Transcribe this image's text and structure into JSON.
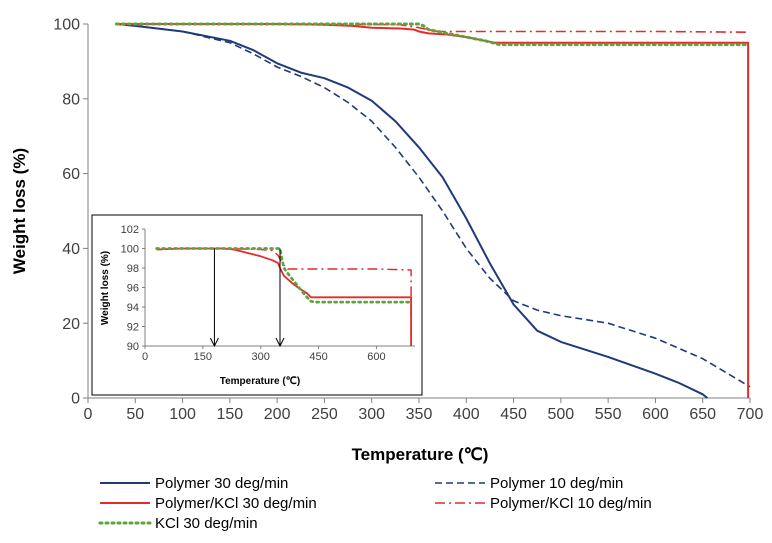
{
  "chart_data": [
    {
      "type": "line",
      "title": "",
      "xlabel": "Temperature (℃)",
      "ylabel": "Weight  loss (%)",
      "xlim": [
        0,
        700
      ],
      "ylim": [
        0,
        100
      ],
      "xticks": [
        "0",
        "50",
        "100",
        "150",
        "200",
        "250",
        "300",
        "350",
        "400",
        "450",
        "500",
        "550",
        "600",
        "650",
        "700"
      ],
      "yticks": [
        "0",
        "20",
        "40",
        "60",
        "80",
        "100"
      ],
      "grid": false,
      "legend": "bottom",
      "series": [
        {
          "name": "Polymer 30 deg/min",
          "color": "#1f3a7a",
          "style": "solid",
          "x": [
            30,
            50,
            100,
            150,
            175,
            200,
            225,
            250,
            275,
            300,
            325,
            350,
            375,
            400,
            425,
            450,
            475,
            500,
            525,
            550,
            600,
            625,
            650,
            655
          ],
          "y": [
            100,
            99.5,
            98,
            95.5,
            93,
            89.5,
            87,
            85.5,
            83,
            79.5,
            74,
            67,
            59,
            48,
            36,
            25,
            18,
            15,
            13,
            11,
            6.5,
            4,
            1,
            0
          ]
        },
        {
          "name": "Polymer 10 deg/min",
          "color": "#1f3a7a",
          "style": "dashed",
          "x": [
            30,
            50,
            100,
            150,
            175,
            200,
            225,
            250,
            275,
            300,
            325,
            350,
            375,
            400,
            425,
            450,
            475,
            500,
            550,
            600,
            650,
            680,
            700
          ],
          "y": [
            100,
            99.5,
            98,
            95,
            92,
            88.5,
            86,
            83,
            79,
            74,
            67,
            59,
            50,
            40,
            32,
            26,
            23.5,
            22,
            20,
            16,
            10.5,
            6,
            3
          ]
        },
        {
          "name": "Polymer/KCl 30 deg/min",
          "color": "#e32b2b",
          "style": "solid",
          "x": [
            30,
            50,
            100,
            150,
            200,
            250,
            280,
            300,
            330,
            345,
            350,
            360,
            380,
            400,
            420,
            430,
            440,
            500,
            600,
            698,
            698,
            698
          ],
          "y": [
            100,
            100,
            100,
            100,
            100,
            99.8,
            99.5,
            99,
            98.8,
            98.5,
            98,
            97.5,
            97.2,
            96.5,
            95.5,
            95,
            95,
            95,
            95,
            95,
            50,
            0
          ]
        },
        {
          "name": "Polymer/KCl 10 deg/min",
          "color": "#e32b2b",
          "style": "dashdot",
          "x": [
            30,
            50,
            100,
            200,
            300,
            330,
            350,
            360,
            370,
            400,
            500,
            600,
            698,
            698
          ],
          "y": [
            100,
            100,
            100,
            100,
            99.9,
            99.8,
            99,
            98.5,
            98,
            98,
            98,
            98,
            97.8,
            97.8
          ]
        },
        {
          "name": "KCl 30 deg/min",
          "color": "#5fa33b",
          "style": "dotted",
          "x": [
            30,
            50,
            100,
            200,
            300,
            350,
            355,
            360,
            380,
            400,
            420,
            435,
            440,
            500,
            600,
            698
          ],
          "y": [
            100,
            100,
            100,
            100,
            100,
            100,
            99.5,
            98.5,
            97.5,
            96.5,
            95.5,
            94.5,
            94.5,
            94.5,
            94.5,
            94.5
          ]
        }
      ]
    },
    {
      "type": "line",
      "title": "",
      "xlabel": "Temperature (℃)",
      "ylabel": "Weight  loss (%)",
      "xlim": [
        0,
        700
      ],
      "ylim": [
        90,
        102
      ],
      "xticks": [
        "0",
        "150",
        "300",
        "450",
        "600"
      ],
      "yticks": [
        "90",
        "92",
        "94",
        "96",
        "98",
        "100",
        "102"
      ],
      "annotations": [
        {
          "type": "arrow",
          "x": 180,
          "from_y": 100,
          "to_y": 90
        },
        {
          "type": "arrow",
          "x": 350,
          "from_y": 100,
          "to_y": 90
        }
      ],
      "series": [
        {
          "name": "Polymer/KCl 30 deg/min",
          "color": "#e32b2b",
          "style": "solid",
          "x": [
            30,
            100,
            200,
            230,
            260,
            300,
            330,
            345,
            350,
            360,
            380,
            400,
            420,
            430,
            440,
            500,
            600,
            690,
            690
          ],
          "y": [
            99.9,
            100,
            100,
            99.9,
            99.6,
            99.2,
            98.8,
            98.5,
            98.0,
            97.2,
            96.5,
            95.9,
            95.4,
            95.0,
            95.0,
            95.0,
            95.0,
            95.0,
            90.0
          ]
        },
        {
          "name": "Polymer/KCl 10 deg/min",
          "color": "#e32b2b",
          "style": "dashdot",
          "x": [
            30,
            100,
            200,
            300,
            330,
            345,
            355,
            370,
            400,
            500,
            600,
            690,
            690
          ],
          "y": [
            99.9,
            100,
            100,
            99.9,
            99.8,
            99.3,
            98.5,
            97.9,
            97.9,
            97.9,
            97.9,
            97.8,
            90.0
          ]
        },
        {
          "name": "KCl 30 deg/min",
          "color": "#5fa33b",
          "style": "dotted",
          "x": [
            30,
            100,
            200,
            300,
            350,
            355,
            360,
            375,
            395,
            415,
            430,
            440,
            500,
            600,
            690
          ],
          "y": [
            100,
            100,
            100,
            100,
            100,
            99.0,
            98.0,
            97.2,
            96.2,
            95.2,
            94.6,
            94.5,
            94.5,
            94.5,
            94.5
          ]
        }
      ]
    }
  ]
}
